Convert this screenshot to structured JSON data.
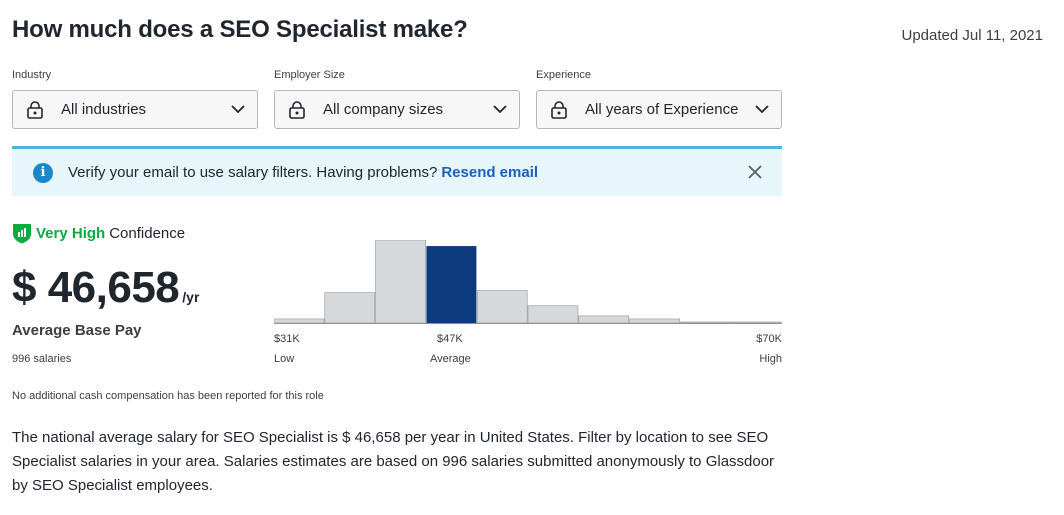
{
  "header": {
    "title": "How much does a SEO Specialist make?",
    "updated": "Updated Jul 11, 2021"
  },
  "filters": [
    {
      "label": "Industry",
      "value": "All industries",
      "icon": "lock-icon"
    },
    {
      "label": "Employer Size",
      "value": "All company sizes",
      "icon": "lock-icon"
    },
    {
      "label": "Experience",
      "value": "All years of Experience",
      "icon": "lock-icon"
    }
  ],
  "banner": {
    "message": "Verify your email to use salary filters. Having problems?",
    "link": "Resend email",
    "info_color": "#1b86c9",
    "bg_color": "#e6f6fb"
  },
  "confidence": {
    "level": "Very High",
    "label": "Confidence",
    "color": "#0caa41"
  },
  "salary": {
    "amount": "$ 46,658",
    "unit": "/yr",
    "label": "Average Base Pay",
    "count": "996 salaries"
  },
  "chart_data": {
    "type": "bar",
    "values": [
      4,
      30,
      82,
      76,
      32,
      17,
      7,
      4,
      1,
      1
    ],
    "highlight_index": 3,
    "highlight_color": "#0b3a7e",
    "bar_color": "#d6d9dc",
    "ylim": [
      0,
      82
    ],
    "ticks": [
      {
        "value": "$31K",
        "caption": "Low"
      },
      {
        "value": "$47K",
        "caption": "Average"
      },
      {
        "value": "$70K",
        "caption": "High"
      }
    ]
  },
  "no_cash_note": "No additional cash compensation has been reported for this role",
  "description": "The national average salary for SEO Specialist is $ 46,658 per year in United States. Filter by location to see SEO Specialist salaries in your area. Salaries estimates are based on 996 salaries submitted anonymously to Glassdoor by SEO Specialist employees."
}
